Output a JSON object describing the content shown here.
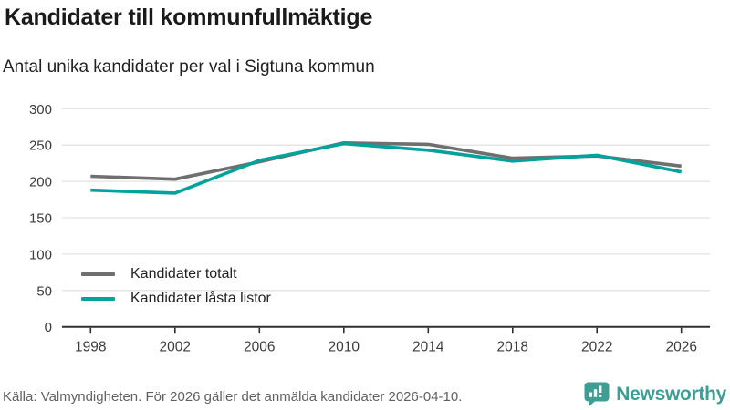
{
  "header": {
    "title": "Kandidater till kommunfullmäktige",
    "subtitle": "Antal unika kandidater per val i Sigtuna kommun"
  },
  "chart_data": {
    "type": "line",
    "categories": [
      "1998",
      "2002",
      "2006",
      "2010",
      "2014",
      "2018",
      "2022",
      "2026"
    ],
    "series": [
      {
        "name": "Kandidater totalt",
        "color": "#6f6f6f",
        "values": [
          207,
          203,
          227,
          253,
          251,
          232,
          235,
          221
        ]
      },
      {
        "name": "Kandidater låsta listor",
        "color": "#00a39b",
        "values": [
          188,
          184,
          229,
          252,
          243,
          228,
          236,
          213
        ]
      }
    ],
    "title": "Kandidater till kommunfullmäktige",
    "subtitle": "Antal unika kandidater per val i Sigtuna kommun",
    "xlabel": "",
    "ylabel": "",
    "ylim": [
      0,
      300
    ],
    "yticks": [
      0,
      50,
      100,
      150,
      200,
      250,
      300
    ],
    "grid": true,
    "legend_position": "inside-bottom-left"
  },
  "colors": {
    "grid": "#e3e3e3",
    "axis": "#2f2f2f",
    "tick_label": "#3c3c3c"
  },
  "footer": {
    "source": "Källa: Valmyndigheten. För 2026 gäller det anmälda kandidater 2026-04-10."
  },
  "branding": {
    "logo_text": "Newsworthy",
    "logo_color": "#3e9e94"
  }
}
